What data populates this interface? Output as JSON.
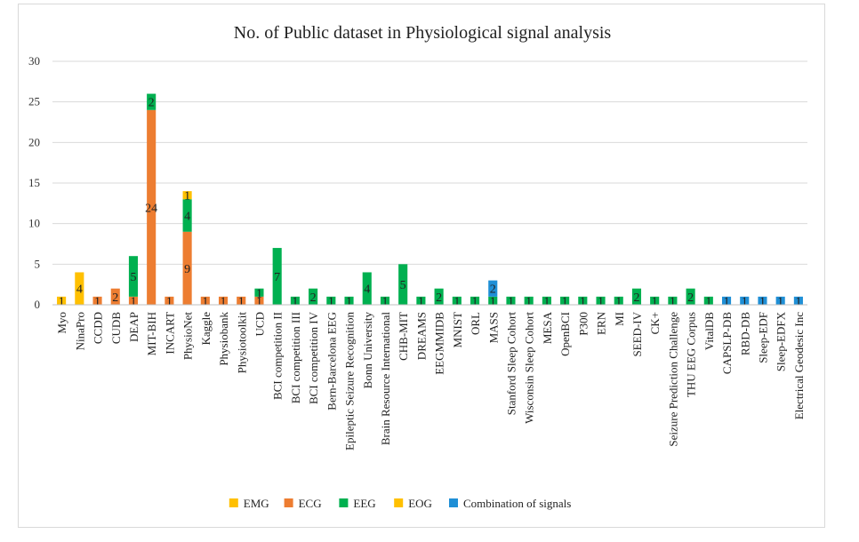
{
  "chart_data": {
    "type": "bar",
    "stacked": true,
    "title": "No. of Public dataset in Physiological signal analysis",
    "ylim": [
      0,
      30
    ],
    "yticks": [
      0,
      5,
      10,
      15,
      20,
      25,
      30
    ],
    "grid": true,
    "legend_position": "bottom",
    "categories": [
      "Myo",
      "NinaPro",
      "CCDD",
      "CUDB",
      "DEAP",
      "MIT-BIH",
      "INCART",
      "PhysioNet",
      "Kaggle",
      "Physiobank",
      "Physiotoolkit",
      "UCD",
      "BCI competition II",
      "BCI competition III",
      "BCI competition IV",
      "Bern-Barcelona EEG",
      "Epileptic Seizure Recognition",
      "Bonn University",
      "Brain Resource International",
      "CHB-MIT",
      "DREAMS",
      "EEGMMIDB",
      "MNIST",
      "ORL",
      "MASS",
      "Stanford Sleep Cohort",
      "Wisconsin Sleep Cohort",
      "MESA",
      "OpenBCI",
      "P300",
      "ERN",
      "MI",
      "SEED-IV",
      "CK+",
      "Seizure Prediction Challenge",
      "THU EEG Corpus",
      "VitalDB",
      "CAPSLP-DB",
      "RBD-DB",
      "Sleep-EDF",
      "Sleep-EDFX",
      "Electrical Geodesic Inc"
    ],
    "series": [
      {
        "name": "EMG",
        "color": "#ffc000",
        "values": [
          1,
          4,
          0,
          0,
          0,
          0,
          0,
          0,
          0,
          0,
          0,
          0,
          0,
          0,
          0,
          0,
          0,
          0,
          0,
          0,
          0,
          0,
          0,
          0,
          0,
          0,
          0,
          0,
          0,
          0,
          0,
          0,
          0,
          0,
          0,
          0,
          0,
          0,
          0,
          0,
          0,
          0
        ]
      },
      {
        "name": "ECG",
        "color": "#ed7d31",
        "values": [
          0,
          0,
          1,
          2,
          1,
          24,
          1,
          9,
          1,
          1,
          1,
          1,
          0,
          0,
          0,
          0,
          0,
          0,
          0,
          0,
          0,
          0,
          0,
          0,
          0,
          0,
          0,
          0,
          0,
          0,
          0,
          0,
          0,
          0,
          0,
          0,
          0,
          0,
          0,
          0,
          0,
          0
        ]
      },
      {
        "name": "EEG",
        "color": "#00b050",
        "values": [
          0,
          0,
          0,
          0,
          5,
          2,
          0,
          4,
          0,
          0,
          0,
          1,
          7,
          1,
          2,
          1,
          1,
          4,
          1,
          5,
          1,
          2,
          1,
          1,
          1,
          1,
          1,
          1,
          1,
          1,
          1,
          1,
          2,
          1,
          1,
          2,
          1,
          0,
          0,
          0,
          0,
          0
        ]
      },
      {
        "name": "EOG",
        "color": "#ffc000",
        "values": [
          0,
          0,
          0,
          0,
          0,
          0,
          0,
          1,
          0,
          0,
          0,
          0,
          0,
          0,
          0,
          0,
          0,
          0,
          0,
          0,
          0,
          0,
          0,
          0,
          0,
          0,
          0,
          0,
          0,
          0,
          0,
          0,
          0,
          0,
          0,
          0,
          0,
          0,
          0,
          0,
          0,
          0
        ]
      },
      {
        "name": "Combination of signals",
        "color": "#1f8fd6",
        "values": [
          0,
          0,
          0,
          0,
          0,
          0,
          0,
          0,
          0,
          0,
          0,
          0,
          0,
          0,
          0,
          0,
          0,
          0,
          0,
          0,
          0,
          0,
          0,
          0,
          2,
          0,
          0,
          0,
          0,
          0,
          0,
          0,
          0,
          0,
          0,
          0,
          0,
          1,
          1,
          1,
          1,
          1
        ]
      }
    ]
  }
}
